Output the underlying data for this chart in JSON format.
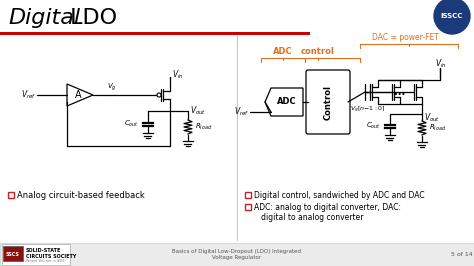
{
  "title_italic": "Digital",
  "title_normal": " LDO",
  "title_fontsize": 16,
  "title_color": "#000000",
  "slide_bg": "#ffffff",
  "header_bar_color": "#cc0000",
  "isscc_logo_color": "#1a3a7a",
  "bullet1_left": "Analog circuit-based feedback",
  "bullet2_right1": "Digital control, sandwiched by ADC and DAC",
  "bullet2_right2": "ADC: analog to digital converter, DAC:",
  "bullet2_right3": "   digital to analog converter",
  "adc_label": "ADC",
  "control_label": "control",
  "dac_label": "DAC = power-FET",
  "orange_color": "#e07020",
  "footer_text1": "Basics of Digital Low-Dropout (LDO) Integrated",
  "footer_text2": "Voltage Regulator",
  "footer_page": "5 of 14",
  "bullet_color": "#cc2222",
  "line_color": "#000000",
  "lw": 0.9
}
